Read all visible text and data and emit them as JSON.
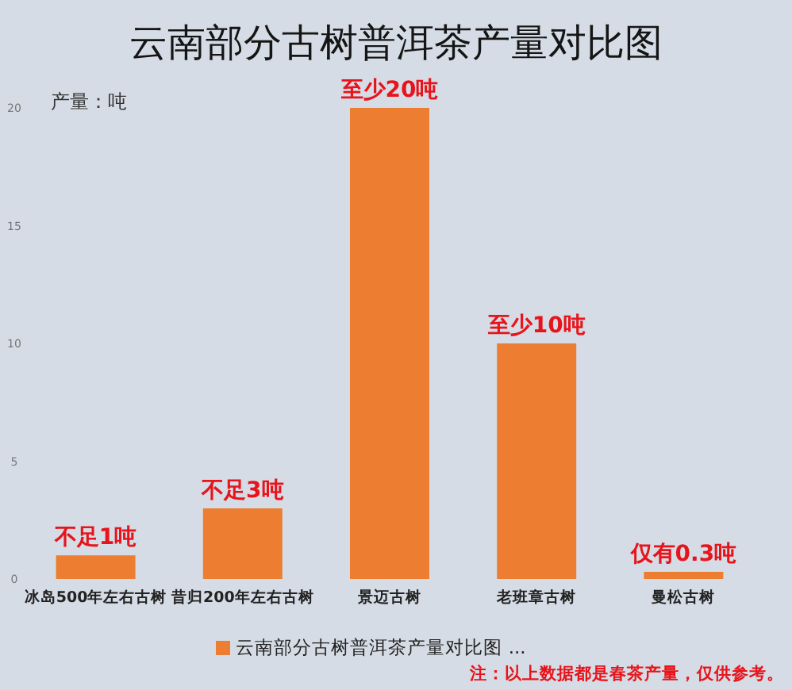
{
  "chart_data": {
    "type": "bar",
    "title": "云南部分古树普洱茶产量对比图",
    "ylabel": "产量：吨",
    "categories": [
      "冰岛500年左右古树",
      "昔归200年左右古树",
      "景迈古树",
      "老班章古树",
      "曼松古树"
    ],
    "series": [
      {
        "name": "云南部分古树普洱茶产量对比图 ...",
        "color": "#ed7d31",
        "values": [
          1,
          3,
          20,
          10,
          0.3
        ],
        "value_labels": [
          "不足1吨",
          "不足3吨",
          "至少20吨",
          "至少10吨",
          "仅有0.3吨"
        ]
      }
    ],
    "ylim": [
      0,
      20
    ],
    "yticks": [
      0,
      5,
      10,
      15,
      20
    ],
    "legend": "bottom",
    "annotations": [
      "注：以上数据都是春茶产量，仅供参考。"
    ]
  }
}
